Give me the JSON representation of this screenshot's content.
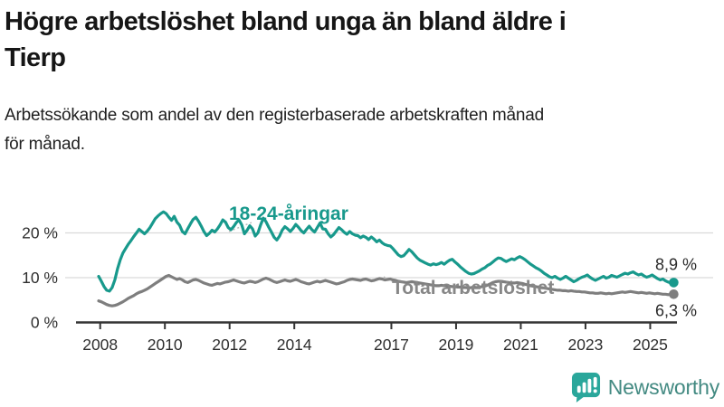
{
  "header": {
    "title_lines": [
      "Högre arbetslöshet bland unga än bland äldre i",
      "Tierp"
    ],
    "subtitle_lines": [
      "Arbetssökande som andel av den registerbaserade arbetskraften månad",
      "för månad."
    ]
  },
  "chart_data": {
    "type": "line",
    "title": "Högre arbetslöshet bland unga än bland äldre i Tierp",
    "unit": "%",
    "x_start": "2008-01",
    "x_end": "2025-10",
    "frequency": "monthly",
    "x_tick_years": [
      2008,
      2010,
      2012,
      2014,
      2017,
      2019,
      2021,
      2023,
      2025
    ],
    "y_ticks": [
      {
        "label": "0 %",
        "value": 0
      },
      {
        "label": "10 %",
        "value": 10
      },
      {
        "label": "20 %",
        "value": 20
      }
    ],
    "ylim": [
      0,
      26
    ],
    "grid": "horizontal",
    "legend_position": "inline-labels",
    "series": [
      {
        "name": "18-24-åringar",
        "color": "#18998C",
        "end_label": "8,9 %",
        "end_value": 8.9,
        "values": [
          10.3,
          9.2,
          8.0,
          7.2,
          7.0,
          7.8,
          9.5,
          12.0,
          14.0,
          15.5,
          16.5,
          17.5,
          18.3,
          19.2,
          20.0,
          20.8,
          20.3,
          19.8,
          20.4,
          21.2,
          22.2,
          23.2,
          23.8,
          24.3,
          24.7,
          24.3,
          23.5,
          22.8,
          23.7,
          22.4,
          21.7,
          20.3,
          19.8,
          20.9,
          22.0,
          23.0,
          23.5,
          22.6,
          21.5,
          20.3,
          19.4,
          19.9,
          20.6,
          20.2,
          20.9,
          21.8,
          22.9,
          22.4,
          21.2,
          20.7,
          21.4,
          22.3,
          22.9,
          21.8,
          19.8,
          20.6,
          21.6,
          20.9,
          19.3,
          20.0,
          21.8,
          23.3,
          22.5,
          21.3,
          20.2,
          19.0,
          18.4,
          19.3,
          20.6,
          21.4,
          20.9,
          20.3,
          21.0,
          21.9,
          21.3,
          20.5,
          20.0,
          20.8,
          21.5,
          20.7,
          20.2,
          21.2,
          22.2,
          20.9,
          20.8,
          19.8,
          19.1,
          19.6,
          20.4,
          21.2,
          20.7,
          20.1,
          19.7,
          20.3,
          19.8,
          19.5,
          19.4,
          18.9,
          19.3,
          19.0,
          18.5,
          19.1,
          18.6,
          18.0,
          18.4,
          17.8,
          17.4,
          17.2,
          17.1,
          16.5,
          15.8,
          15.1,
          14.7,
          14.9,
          15.6,
          16.3,
          15.8,
          15.1,
          14.4,
          13.9,
          13.6,
          13.3,
          13.0,
          12.8,
          13.1,
          12.9,
          13.1,
          13.4,
          13.0,
          13.5,
          13.9,
          14.1,
          13.5,
          13.0,
          12.4,
          11.9,
          11.4,
          11.0,
          10.8,
          10.9,
          11.2,
          11.5,
          11.9,
          12.2,
          12.7,
          13.0,
          13.5,
          14.0,
          14.4,
          14.3,
          13.9,
          13.6,
          13.9,
          14.2,
          14.0,
          14.4,
          14.7,
          14.4,
          14.0,
          13.5,
          13.0,
          12.6,
          12.2,
          11.9,
          11.5,
          11.0,
          10.6,
          10.2,
          10.0,
          10.3,
          9.9,
          9.6,
          9.9,
          10.3,
          9.9,
          9.5,
          9.1,
          9.4,
          9.8,
          10.1,
          10.3,
          10.6,
          10.1,
          9.7,
          9.4,
          9.7,
          10.0,
          10.3,
          9.9,
          10.1,
          10.5,
          10.3,
          10.1,
          10.4,
          10.7,
          11.0,
          10.8,
          11.1,
          11.3,
          10.9,
          10.6,
          10.8,
          10.4,
          10.1,
          10.3,
          10.6,
          10.2,
          9.8,
          9.5,
          9.7,
          9.3,
          9.0,
          8.8,
          8.9
        ]
      },
      {
        "name": "Total arbetslöshet",
        "color": "#7E7E7E",
        "end_label": "6,3 %",
        "end_value": 6.3,
        "values": [
          4.8,
          4.6,
          4.3,
          4.0,
          3.8,
          3.7,
          3.8,
          4.0,
          4.3,
          4.6,
          5.0,
          5.4,
          5.7,
          6.0,
          6.4,
          6.7,
          6.9,
          7.2,
          7.5,
          7.9,
          8.3,
          8.7,
          9.1,
          9.5,
          9.9,
          10.3,
          10.5,
          10.2,
          9.9,
          9.6,
          9.8,
          9.5,
          9.1,
          8.9,
          9.2,
          9.5,
          9.6,
          9.4,
          9.1,
          8.8,
          8.6,
          8.4,
          8.3,
          8.5,
          8.7,
          8.6,
          8.8,
          9.0,
          9.1,
          9.3,
          9.5,
          9.3,
          9.1,
          8.9,
          8.8,
          9.0,
          9.2,
          9.1,
          8.9,
          9.1,
          9.4,
          9.7,
          9.9,
          9.7,
          9.4,
          9.1,
          8.9,
          9.1,
          9.3,
          9.5,
          9.3,
          9.2,
          9.4,
          9.6,
          9.4,
          9.1,
          8.9,
          8.7,
          8.6,
          8.8,
          9.0,
          9.2,
          9.0,
          9.2,
          9.4,
          9.2,
          9.0,
          8.8,
          8.6,
          8.7,
          8.9,
          9.1,
          9.4,
          9.6,
          9.7,
          9.6,
          9.5,
          9.4,
          9.6,
          9.7,
          9.5,
          9.3,
          9.4,
          9.6,
          9.8,
          9.7,
          9.5,
          9.6,
          9.7,
          9.5,
          9.4,
          9.2,
          9.1,
          9.0,
          8.9,
          9.0,
          9.1,
          9.0,
          8.9,
          8.8,
          8.7,
          8.6,
          8.5,
          8.4,
          8.3,
          8.2,
          8.2,
          8.3,
          8.2,
          8.1,
          8.1,
          8.0,
          8.0,
          7.9,
          7.9,
          7.8,
          7.8,
          7.7,
          7.8,
          7.9,
          7.8,
          7.9,
          8.0,
          8.1,
          8.3,
          8.6,
          8.9,
          9.1,
          9.2,
          9.2,
          9.1,
          9.0,
          8.9,
          8.8,
          8.8,
          8.9,
          8.8,
          8.7,
          8.5,
          8.4,
          8.2,
          8.1,
          8.0,
          7.9,
          7.8,
          7.7,
          7.6,
          7.5,
          7.4,
          7.3,
          7.2,
          7.2,
          7.1,
          7.1,
          7.0,
          7.1,
          7.0,
          6.9,
          6.9,
          6.8,
          6.8,
          6.7,
          6.6,
          6.6,
          6.5,
          6.5,
          6.6,
          6.5,
          6.4,
          6.5,
          6.4,
          6.5,
          6.6,
          6.7,
          6.8,
          6.7,
          6.8,
          6.9,
          6.8,
          6.7,
          6.6,
          6.7,
          6.6,
          6.5,
          6.6,
          6.5,
          6.4,
          6.5,
          6.4,
          6.3,
          6.3,
          6.2,
          6.3,
          6.3
        ]
      }
    ],
    "colors": {
      "grid": "#DADADA",
      "axis": "#333333",
      "tick_text": "#2E2E2E"
    }
  },
  "footer": {
    "brand": "Newsworthy",
    "brand_color": "#438A82",
    "icon_color": "#2AA79B"
  }
}
